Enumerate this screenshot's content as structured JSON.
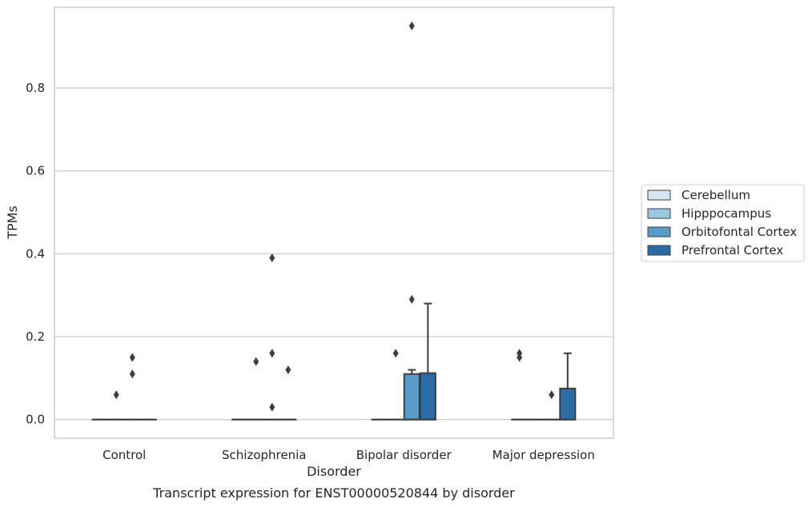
{
  "caption": "Transcript expression for ENST00000520844 by disorder",
  "chart_data": {
    "type": "box",
    "xlabel": "Disorder",
    "ylabel": "TPMs",
    "ylim": [
      -0.045,
      0.995
    ],
    "yticks": [
      0.0,
      0.2,
      0.4,
      0.6,
      0.8
    ],
    "ytick_labels": [
      "0.0",
      "0.2",
      "0.4",
      "0.6",
      "0.8"
    ],
    "grid": "horizontal",
    "legend_position": "right",
    "categories": [
      "Control",
      "Schizophrenia",
      "Bipolar disorder",
      "Major depression"
    ],
    "series": [
      {
        "name": "Cerebellum",
        "color": "#d6e6f4",
        "boxes": [
          {
            "q1": 0.0,
            "median": 0.0,
            "q3": 0.0,
            "whisker_low": 0.0,
            "whisker_high": 0.0,
            "outliers": []
          },
          {
            "q1": 0.0,
            "median": 0.0,
            "q3": 0.0,
            "whisker_low": 0.0,
            "whisker_high": 0.0,
            "outliers": []
          },
          {
            "q1": 0.0,
            "median": 0.0,
            "q3": 0.0,
            "whisker_low": 0.0,
            "whisker_high": 0.0,
            "outliers": []
          },
          {
            "q1": 0.0,
            "median": 0.0,
            "q3": 0.0,
            "whisker_low": 0.0,
            "whisker_high": 0.0,
            "outliers": [
              0.16,
              0.15
            ]
          }
        ]
      },
      {
        "name": "Hipppocampus",
        "color": "#9ac8e0",
        "boxes": [
          {
            "q1": 0.0,
            "median": 0.0,
            "q3": 0.0,
            "whisker_low": 0.0,
            "whisker_high": 0.0,
            "outliers": [
              0.06
            ]
          },
          {
            "q1": 0.0,
            "median": 0.0,
            "q3": 0.0,
            "whisker_low": 0.0,
            "whisker_high": 0.0,
            "outliers": [
              0.14
            ]
          },
          {
            "q1": 0.0,
            "median": 0.0,
            "q3": 0.0,
            "whisker_low": 0.0,
            "whisker_high": 0.0,
            "outliers": [
              0.16
            ]
          },
          {
            "q1": 0.0,
            "median": 0.0,
            "q3": 0.0,
            "whisker_low": 0.0,
            "whisker_high": 0.0,
            "outliers": []
          }
        ]
      },
      {
        "name": "Orbitofontal Cortex",
        "color": "#5a9cc9",
        "boxes": [
          {
            "q1": 0.0,
            "median": 0.0,
            "q3": 0.0,
            "whisker_low": 0.0,
            "whisker_high": 0.0,
            "outliers": [
              0.15,
              0.11
            ]
          },
          {
            "q1": 0.0,
            "median": 0.0,
            "q3": 0.0,
            "whisker_low": 0.0,
            "whisker_high": 0.0,
            "outliers": [
              0.39,
              0.16,
              0.03
            ]
          },
          {
            "q1": 0.0,
            "median": 0.0,
            "q3": 0.11,
            "whisker_low": 0.0,
            "whisker_high": 0.12,
            "outliers": [
              0.95,
              0.29
            ]
          },
          {
            "q1": 0.0,
            "median": 0.0,
            "q3": 0.0,
            "whisker_low": 0.0,
            "whisker_high": 0.0,
            "outliers": [
              0.06
            ]
          }
        ]
      },
      {
        "name": "Prefrontal Cortex",
        "color": "#2d6ba5",
        "boxes": [
          {
            "q1": 0.0,
            "median": 0.0,
            "q3": 0.0,
            "whisker_low": 0.0,
            "whisker_high": 0.0,
            "outliers": []
          },
          {
            "q1": 0.0,
            "median": 0.0,
            "q3": 0.0,
            "whisker_low": 0.0,
            "whisker_high": 0.0,
            "outliers": [
              0.12
            ]
          },
          {
            "q1": 0.0,
            "median": 0.0,
            "q3": 0.112,
            "whisker_low": 0.0,
            "whisker_high": 0.28,
            "outliers": []
          },
          {
            "q1": 0.0,
            "median": 0.0,
            "q3": 0.075,
            "whisker_low": 0.0,
            "whisker_high": 0.16,
            "outliers": []
          }
        ]
      }
    ]
  }
}
